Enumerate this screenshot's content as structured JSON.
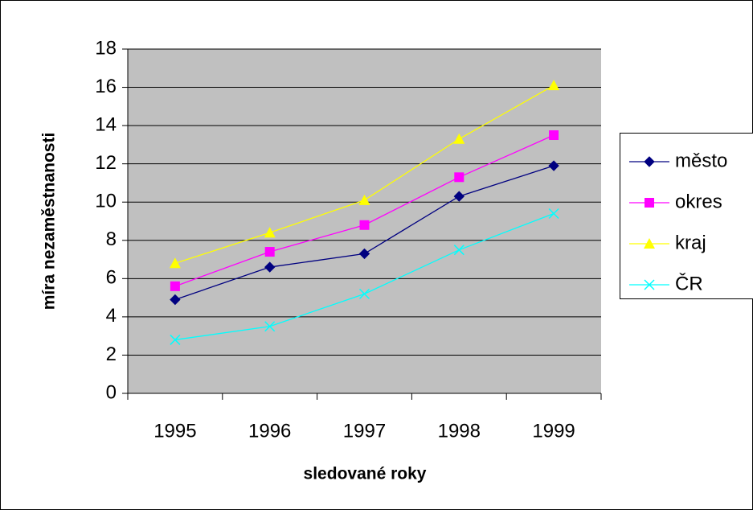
{
  "chart_data": {
    "type": "line",
    "x_label": "sledované roky",
    "y_label": "míra nezaměstnanosti",
    "categories": [
      "1995",
      "1996",
      "1997",
      "1998",
      "1999"
    ],
    "series": [
      {
        "name": "město",
        "color": "#000080",
        "marker": "diamond",
        "values": [
          4.9,
          6.6,
          7.3,
          10.3,
          11.9
        ]
      },
      {
        "name": "okres",
        "color": "#ff00ff",
        "marker": "square",
        "values": [
          5.6,
          7.4,
          8.8,
          11.3,
          13.5
        ]
      },
      {
        "name": "kraj",
        "color": "#ffff00",
        "marker": "triangle",
        "values": [
          6.8,
          8.4,
          10.1,
          13.3,
          16.1
        ]
      },
      {
        "name": "ČR",
        "color": "#00ffff",
        "marker": "x",
        "values": [
          2.8,
          3.5,
          5.2,
          7.5,
          9.4
        ]
      }
    ],
    "ylim": [
      0,
      18
    ],
    "yticks": [
      0,
      2,
      4,
      6,
      8,
      10,
      12,
      14,
      16,
      18
    ],
    "grid": true,
    "legend": "right",
    "plot_background": "#c0c0c0"
  }
}
